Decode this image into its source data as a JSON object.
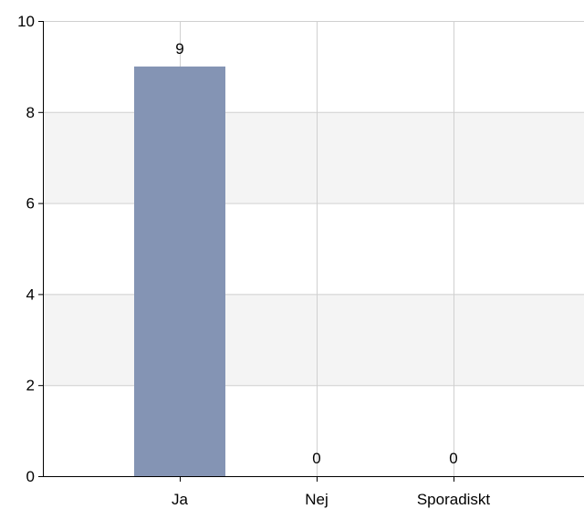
{
  "chart_data": {
    "type": "bar",
    "categories": [
      "Ja",
      "Nej",
      "Sporadiskt"
    ],
    "values": [
      9,
      0,
      0
    ],
    "ylim": [
      0,
      10
    ],
    "yticks": [
      0,
      2,
      4,
      6,
      8,
      10
    ],
    "data_labels": [
      "9",
      "0",
      "0"
    ],
    "grid": true,
    "bar_color": "#8494b4",
    "band_color": "#f4f4f4",
    "grid_color": "#d0d0d0",
    "axis_color": "#000000"
  }
}
